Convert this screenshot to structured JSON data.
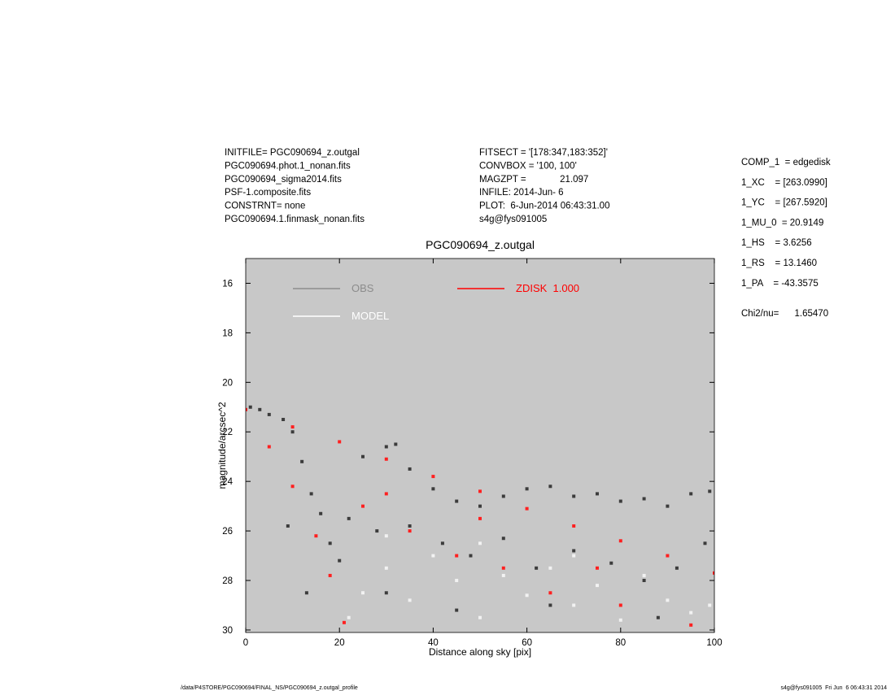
{
  "header": {
    "left": [
      "INITFILE= PGC090694_z.outgal",
      "PGC090694.phot.1_nonan.fits",
      "PGC090694_sigma2014.fits",
      "PSF-1.composite.fits",
      "CONSTRNT= none",
      "PGC090694.1.finmask_nonan.fits"
    ],
    "middle": [
      "FITSECT = '[178:347,183:352]'",
      "CONVBOX = '100, 100'",
      "MAGZPT =             21.097",
      "INFILE: 2014-Jun- 6",
      "PLOT:  6-Jun-2014 06:43:31.00",
      "s4g@fys091005"
    ],
    "right": [
      "COMP_1  = edgedisk",
      "1_XC    = [263.0990]",
      "1_YC    = [267.5920]",
      "1_MU_0  = 20.9149",
      "1_HS    = 3.6256",
      "1_RS    = 13.1460",
      "1_PA    = -43.3575"
    ],
    "chi": "Chi2/nu=      1.65470"
  },
  "chart_data": {
    "type": "scatter",
    "title": "PGC090694_z.outgal",
    "xlabel": "Distance along sky [pix]",
    "ylabel": "magnitude/arcsec^2",
    "xlim": [
      0,
      100
    ],
    "ylim": [
      15,
      30.1
    ],
    "y_inverted": true,
    "xticks": [
      0,
      20,
      40,
      60,
      80,
      100
    ],
    "yticks": [
      16,
      18,
      20,
      22,
      24,
      26,
      28,
      30
    ],
    "background": "#c8c8c8",
    "series": [
      {
        "name": "ZDISK  1.000",
        "color": "#ff2020",
        "legend_color": "#ff0000",
        "x": [
          0,
          10,
          20,
          30,
          40,
          50,
          60,
          70,
          80,
          90,
          100,
          5,
          10,
          15,
          18,
          21,
          25,
          35,
          45,
          55,
          65,
          80,
          95,
          30,
          50,
          75
        ],
        "values": [
          21.1,
          21.8,
          22.4,
          23.1,
          23.8,
          24.4,
          25.1,
          25.8,
          26.4,
          27.0,
          27.7,
          22.6,
          24.2,
          26.2,
          27.8,
          29.7,
          25.0,
          26.0,
          27.0,
          27.5,
          28.5,
          29.0,
          29.8,
          24.5,
          25.5,
          27.5
        ]
      },
      {
        "name": "MODEL",
        "color": "#f2f2f2",
        "legend_color": "#ffffff",
        "x": [
          22,
          25,
          30,
          35,
          40,
          45,
          50,
          55,
          60,
          65,
          70,
          75,
          80,
          85,
          90,
          95,
          99,
          30,
          50,
          70
        ],
        "values": [
          29.5,
          28.5,
          27.5,
          28.8,
          27.0,
          28.0,
          29.5,
          27.8,
          28.6,
          27.5,
          29.0,
          28.2,
          29.6,
          27.8,
          28.8,
          29.3,
          29.0,
          26.2,
          26.5,
          27.0
        ]
      },
      {
        "name": "OBS",
        "color": "#3c3c3c",
        "legend_color": "#8c8c8c",
        "x": [
          1,
          3,
          5,
          8,
          10,
          12,
          14,
          16,
          18,
          20,
          25,
          30,
          32,
          35,
          40,
          45,
          50,
          55,
          60,
          65,
          70,
          75,
          80,
          85,
          90,
          95,
          99,
          22,
          28,
          35,
          42,
          48,
          55,
          62,
          70,
          78,
          85,
          92,
          98,
          13,
          9,
          30,
          45,
          65,
          88
        ],
        "values": [
          21.0,
          21.1,
          21.3,
          21.5,
          22.0,
          23.2,
          24.5,
          25.3,
          26.5,
          27.2,
          23.0,
          22.6,
          22.5,
          23.5,
          24.3,
          24.8,
          25.0,
          24.6,
          24.3,
          24.2,
          24.6,
          24.5,
          24.8,
          24.7,
          25.0,
          24.5,
          24.4,
          25.5,
          26.0,
          25.8,
          26.5,
          27.0,
          26.3,
          27.5,
          26.8,
          27.3,
          28.0,
          27.5,
          26.5,
          28.5,
          25.8,
          28.5,
          29.2,
          29.0,
          29.5
        ]
      }
    ]
  },
  "footer": {
    "left": "/data/P4STORE/PGC090694/FINAL_NS/PGC090694_z.outgal_profile",
    "right": "s4g@fys091005  Fri Jun  6 06:43:31 2014"
  }
}
